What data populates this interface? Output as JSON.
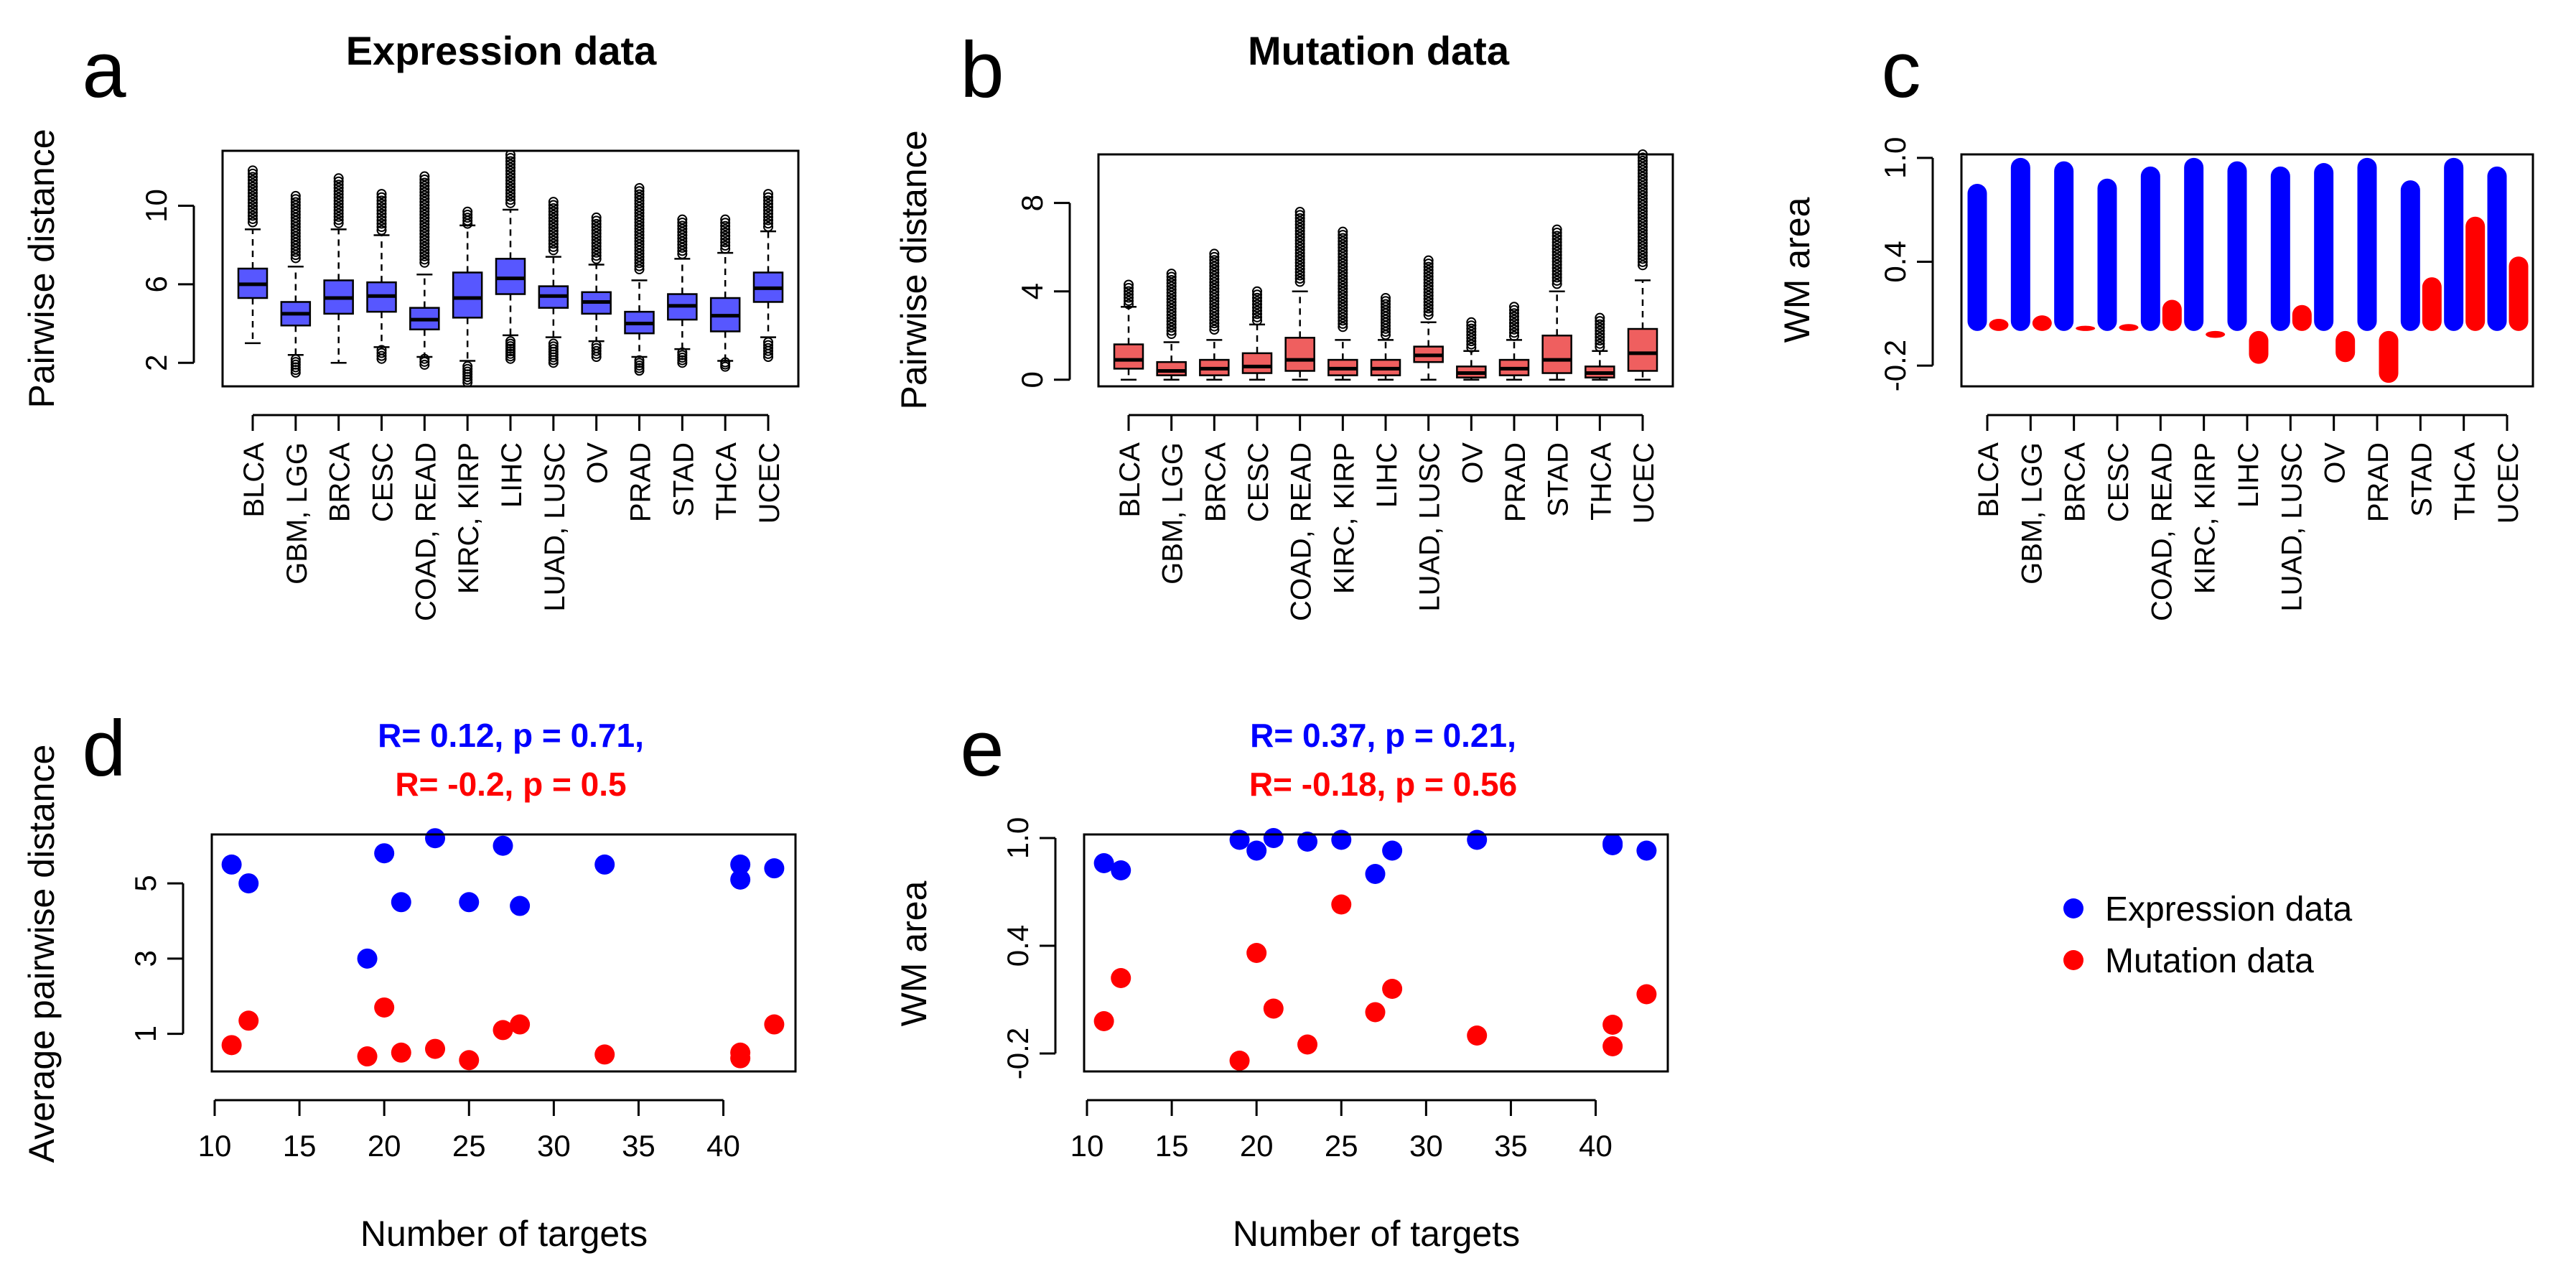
{
  "categories": [
    "BLCA",
    "GBM, LGG",
    "BRCA",
    "CESC",
    "COAD, READ",
    "KIRC, KIRP",
    "LIHC",
    "LUAD, LUSC",
    "OV",
    "PRAD",
    "STAD",
    "THCA",
    "UCEC"
  ],
  "colors": {
    "expression": "#0000ff",
    "mutation": "#ff0000",
    "expression_box": "#5757ff",
    "mutation_box": "#ef5f5f"
  },
  "legend": {
    "expression": "Expression data",
    "mutation": "Mutation data"
  },
  "chart_data": [
    {
      "panel": "a",
      "type": "box",
      "title": "Expression data",
      "ylabel": "Pairwise distance",
      "xlabel": "",
      "ylim": [
        0.8,
        12.8
      ],
      "yticks": [
        2,
        6,
        10
      ],
      "grid": false,
      "series": [
        {
          "name": "Expression data",
          "boxes": [
            {
              "min": 3.0,
              "q1": 5.3,
              "med": 6.0,
              "q3": 6.8,
              "max": 8.8,
              "outmax": 11.8
            },
            {
              "min": 2.4,
              "q1": 3.9,
              "med": 4.5,
              "q3": 5.1,
              "max": 6.9,
              "outmin": 1.5,
              "outmax": 10.5
            },
            {
              "min": 2.0,
              "q1": 4.5,
              "med": 5.3,
              "q3": 6.2,
              "max": 8.8,
              "outmax": 11.4
            },
            {
              "min": 2.8,
              "q1": 4.6,
              "med": 5.4,
              "q3": 6.1,
              "max": 8.5,
              "outmin": 2.2,
              "outmax": 10.6
            },
            {
              "min": 2.3,
              "q1": 3.7,
              "med": 4.2,
              "q3": 4.8,
              "max": 6.5,
              "outmin": 1.9,
              "outmax": 11.5
            },
            {
              "min": 2.1,
              "q1": 4.3,
              "med": 5.3,
              "q3": 6.6,
              "max": 9.0,
              "outmin": 1.0,
              "outmax": 9.7
            },
            {
              "min": 3.4,
              "q1": 5.5,
              "med": 6.3,
              "q3": 7.3,
              "max": 9.8,
              "outmin": 2.2,
              "outmax": 12.6
            },
            {
              "min": 3.3,
              "q1": 4.8,
              "med": 5.4,
              "q3": 5.9,
              "max": 7.4,
              "outmin": 2.0,
              "outmax": 10.2
            },
            {
              "min": 3.1,
              "q1": 4.5,
              "med": 5.1,
              "q3": 5.6,
              "max": 7.0,
              "outmin": 2.3,
              "outmax": 9.4
            },
            {
              "min": 2.3,
              "q1": 3.5,
              "med": 4.0,
              "q3": 4.6,
              "max": 6.2,
              "outmin": 1.6,
              "outmax": 10.9
            },
            {
              "min": 2.7,
              "q1": 4.2,
              "med": 4.9,
              "q3": 5.5,
              "max": 7.3,
              "outmin": 2.0,
              "outmax": 9.3
            },
            {
              "min": 2.1,
              "q1": 3.6,
              "med": 4.4,
              "q3": 5.3,
              "max": 7.6,
              "outmin": 1.8,
              "outmax": 9.3
            },
            {
              "min": 3.3,
              "q1": 5.1,
              "med": 5.8,
              "q3": 6.6,
              "max": 8.7,
              "outmin": 2.3,
              "outmax": 10.6
            }
          ]
        }
      ]
    },
    {
      "panel": "b",
      "type": "box",
      "title": "Mutation data",
      "ylabel": "Pairwise distance",
      "xlabel": "",
      "ylim": [
        -0.3,
        10.2
      ],
      "yticks": [
        0,
        4,
        8
      ],
      "grid": false,
      "series": [
        {
          "name": "Mutation data",
          "boxes": [
            {
              "min": 0.0,
              "q1": 0.5,
              "med": 0.9,
              "q3": 1.6,
              "max": 3.3,
              "outmax": 4.3
            },
            {
              "min": 0.0,
              "q1": 0.2,
              "med": 0.4,
              "q3": 0.8,
              "max": 1.7,
              "outmax": 4.8
            },
            {
              "min": 0.0,
              "q1": 0.2,
              "med": 0.5,
              "q3": 0.9,
              "max": 1.8,
              "outmax": 5.7
            },
            {
              "min": 0.0,
              "q1": 0.3,
              "med": 0.6,
              "q3": 1.2,
              "max": 2.5,
              "outmax": 4.0
            },
            {
              "min": 0.0,
              "q1": 0.4,
              "med": 0.9,
              "q3": 1.9,
              "max": 4.0,
              "outmax": 7.6
            },
            {
              "min": 0.0,
              "q1": 0.2,
              "med": 0.5,
              "q3": 0.9,
              "max": 1.8,
              "outmax": 6.7
            },
            {
              "min": 0.0,
              "q1": 0.2,
              "med": 0.5,
              "q3": 0.9,
              "max": 1.8,
              "outmax": 3.7
            },
            {
              "min": 0.0,
              "q1": 0.8,
              "med": 1.1,
              "q3": 1.5,
              "max": 2.6,
              "outmax": 5.4
            },
            {
              "min": 0.0,
              "q1": 0.1,
              "med": 0.3,
              "q3": 0.6,
              "max": 1.3,
              "outmax": 2.6
            },
            {
              "min": 0.0,
              "q1": 0.2,
              "med": 0.5,
              "q3": 0.9,
              "max": 1.8,
              "outmax": 3.3
            },
            {
              "min": 0.0,
              "q1": 0.3,
              "med": 0.9,
              "q3": 2.0,
              "max": 4.0,
              "outmax": 6.8
            },
            {
              "min": 0.0,
              "q1": 0.1,
              "med": 0.3,
              "q3": 0.6,
              "max": 1.3,
              "outmax": 2.8
            },
            {
              "min": 0.0,
              "q1": 0.4,
              "med": 1.2,
              "q3": 2.3,
              "max": 4.5,
              "outmax": 10.2
            }
          ]
        }
      ]
    },
    {
      "panel": "c",
      "type": "bar",
      "title": "",
      "ylabel": "WM area",
      "xlabel": "",
      "ylim": [
        -0.32,
        1.02
      ],
      "yticks": [
        -0.2,
        0.4,
        1.0
      ],
      "ytick_labels": [
        "-0.2",
        "0.4",
        "1.0"
      ],
      "baseline": 0.0,
      "grid": false,
      "series": [
        {
          "name": "Expression data",
          "values": [
            0.85,
            1.0,
            0.98,
            0.88,
            0.95,
            1.0,
            0.98,
            0.95,
            0.97,
            1.0,
            0.87,
            1.0,
            0.95
          ]
        },
        {
          "name": "Mutation data",
          "values": [
            0.07,
            0.09,
            0.03,
            0.04,
            0.18,
            -0.04,
            -0.19,
            0.15,
            -0.18,
            -0.3,
            0.31,
            0.66,
            0.43
          ]
        }
      ]
    },
    {
      "panel": "d",
      "type": "scatter",
      "title": "",
      "stats": [
        "R= 0.12, p = 0.71,",
        "R= -0.2, p = 0.5"
      ],
      "ylabel": "Average pairwise distance",
      "xlabel": "Number of targets",
      "xlim": [
        10,
        44
      ],
      "ylim": [
        0.0,
        6.3
      ],
      "xticks": [
        10,
        15,
        20,
        25,
        30,
        35,
        40
      ],
      "yticks": [
        1,
        3,
        5
      ],
      "grid": false,
      "series": [
        {
          "name": "Expression data",
          "x": [
            11,
            12,
            19,
            20,
            21,
            23,
            25,
            27,
            28,
            33,
            41,
            41,
            43
          ],
          "y": [
            5.5,
            5.0,
            3.0,
            5.8,
            4.5,
            6.2,
            4.5,
            6.0,
            4.4,
            5.5,
            5.5,
            5.1,
            5.4
          ]
        },
        {
          "name": "Mutation data",
          "x": [
            11,
            12,
            19,
            20,
            21,
            23,
            25,
            27,
            28,
            33,
            41,
            41,
            43
          ],
          "y": [
            0.7,
            1.35,
            0.4,
            1.7,
            0.5,
            0.6,
            0.3,
            1.1,
            1.25,
            0.45,
            0.5,
            0.35,
            1.25
          ]
        }
      ]
    },
    {
      "panel": "e",
      "type": "scatter",
      "title": "",
      "stats": [
        "R= 0.37, p = 0.21,",
        "R= -0.18, p = 0.56"
      ],
      "ylabel": "WM area",
      "xlabel": "Number of targets",
      "xlim": [
        10,
        44
      ],
      "ylim": [
        -0.3,
        1.02
      ],
      "xticks": [
        10,
        15,
        20,
        25,
        30,
        35,
        40
      ],
      "yticks": [
        -0.2,
        0.4,
        1.0
      ],
      "ytick_labels": [
        "-0.2",
        "0.4",
        "1.0"
      ],
      "grid": false,
      "series": [
        {
          "name": "Expression data",
          "x": [
            11,
            12,
            19,
            20,
            21,
            23,
            25,
            27,
            28,
            33,
            41,
            41,
            43
          ],
          "y": [
            0.86,
            0.82,
            0.99,
            0.93,
            1.0,
            0.98,
            0.99,
            0.8,
            0.93,
            0.99,
            0.97,
            0.96,
            0.93
          ]
        },
        {
          "name": "Mutation data",
          "x": [
            11,
            12,
            19,
            20,
            21,
            23,
            25,
            27,
            28,
            33,
            41,
            41,
            43
          ],
          "y": [
            -0.02,
            0.22,
            -0.24,
            0.36,
            0.05,
            -0.15,
            0.63,
            0.03,
            0.16,
            -0.1,
            -0.04,
            -0.16,
            0.13
          ]
        }
      ]
    }
  ]
}
